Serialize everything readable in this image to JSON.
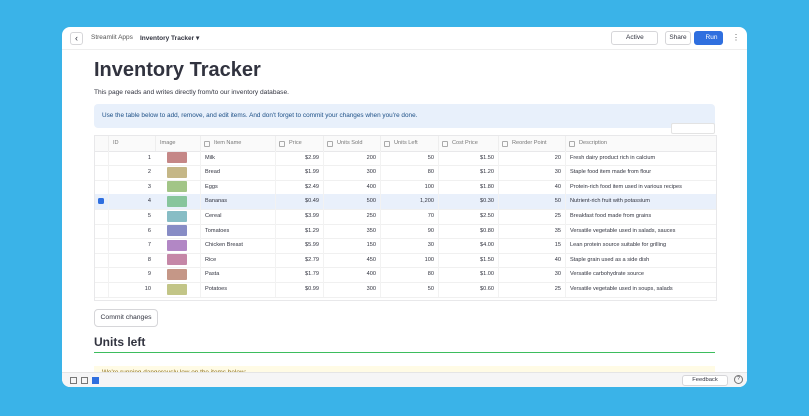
{
  "topbar": {
    "back": "‹",
    "breadcrumb": "Streamlit Apps",
    "app": "Inventory Tracker ▾",
    "status": "Active",
    "share": "Share",
    "run": "Run",
    "menu": "⋮"
  },
  "page": {
    "title": "Inventory Tracker",
    "intro": "This page reads and writes directly from/to our inventory database.",
    "info": "Use the table below to add, remove, and edit items. And don't forget to commit your changes when you're done.",
    "button": "Commit changes",
    "section": "Units left",
    "warning": "We're running dangerously low on the items below:"
  },
  "table": {
    "columns": [
      "ID",
      "Image",
      "Item Name",
      "Price",
      "Units Sold",
      "Units Left",
      "Cost Price",
      "Reorder Point",
      "Description"
    ],
    "selected_rows": [
      "4"
    ],
    "rows": [
      [
        "1",
        "Milk",
        "$2.99",
        "200",
        "50",
        "$1.50",
        "20",
        "Fresh dairy product rich in calcium"
      ],
      [
        "2",
        "Bread",
        "$1.99",
        "300",
        "80",
        "$1.20",
        "30",
        "Staple food item made from flour"
      ],
      [
        "3",
        "Eggs",
        "$2.49",
        "400",
        "100",
        "$1.80",
        "40",
        "Protein-rich food item used in various recipes"
      ],
      [
        "4",
        "Bananas",
        "$0.49",
        "500",
        "1,200",
        "$0.30",
        "50",
        "Nutrient-rich fruit with potassium"
      ],
      [
        "5",
        "Cereal",
        "$3.99",
        "250",
        "70",
        "$2.50",
        "25",
        "Breakfast food made from grains"
      ],
      [
        "6",
        "Tomatoes",
        "$1.29",
        "350",
        "90",
        "$0.80",
        "35",
        "Versatile vegetable used in salads, sauces"
      ],
      [
        "7",
        "Chicken Breast",
        "$5.99",
        "150",
        "30",
        "$4.00",
        "15",
        "Lean protein source suitable for grilling"
      ],
      [
        "8",
        "Rice",
        "$2.79",
        "450",
        "100",
        "$1.50",
        "40",
        "Staple grain used as a side dish"
      ],
      [
        "9",
        "Pasta",
        "$1.79",
        "400",
        "80",
        "$1.00",
        "30",
        "Versatile carbohydrate source"
      ],
      [
        "10",
        "Potatoes",
        "$0.99",
        "300",
        "50",
        "$0.60",
        "25",
        "Versatile vegetable used in soups, salads"
      ]
    ]
  },
  "footer": {
    "feedback": "Feedback",
    "help": "?"
  }
}
